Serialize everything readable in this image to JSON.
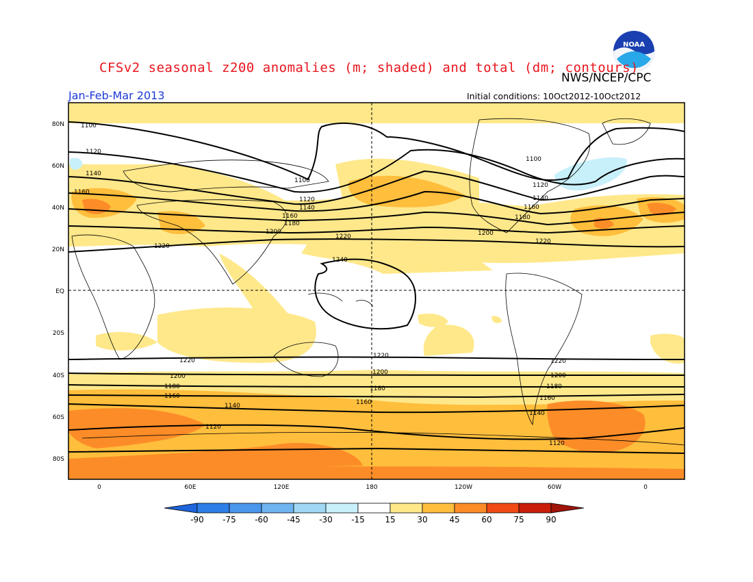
{
  "title": "CFSv2 seasonal z200 anomalies (m; shaded) and total (dm; contours)",
  "agency": "NWS/NCEP/CPC",
  "logo_text": "NOAA",
  "period": "Jan-Feb-Mar 2013",
  "initial_conditions": "Initial conditions: 10Oct2012-10Oct2012",
  "lat_labels": [
    "80N",
    "60N",
    "40N",
    "20N",
    "EQ",
    "20S",
    "40S",
    "60S",
    "80S"
  ],
  "lon_labels": [
    "0",
    "60E",
    "120E",
    "180",
    "120W",
    "60W",
    "0"
  ],
  "contour_labels": [
    "1100",
    "1120",
    "1140",
    "1160",
    "1180",
    "1200",
    "1220",
    "1240"
  ],
  "colorbar": {
    "labels": [
      "-90",
      "-75",
      "-60",
      "-45",
      "-30",
      "-15",
      "15",
      "30",
      "45",
      "60",
      "75",
      "90"
    ],
    "colors": [
      "#1e64dc",
      "#2d7ee6",
      "#4a96ec",
      "#6eb4f0",
      "#a0d8f4",
      "#c8f0fa",
      "#ffffff",
      "#ffe88a",
      "#ffbe3c",
      "#fc8c28",
      "#f04a14",
      "#c81e0a",
      "#a0140a"
    ]
  }
}
